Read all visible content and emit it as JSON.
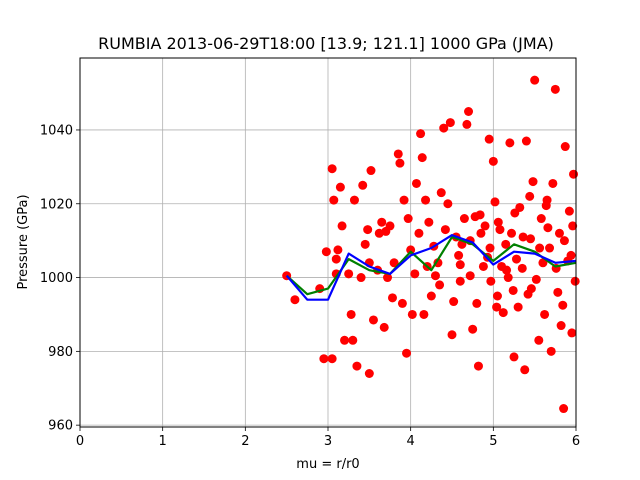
{
  "chart_data": {
    "type": "scatter",
    "title": "RUMBIA 2013-06-29T18:00 [13.9; 121.1] 1000 GPa (JMA)",
    "xlabel": "mu = r/r0",
    "ylabel": "Pressure (GPa)",
    "xlim": [
      0,
      6
    ],
    "ylim": [
      959.5,
      1059.5
    ],
    "xticks": [
      "0",
      "1",
      "2",
      "3",
      "4",
      "5",
      "6"
    ],
    "yticks": [
      "960",
      "980",
      "1000",
      "1020",
      "1040"
    ],
    "grid": true,
    "colors": {
      "scatter": "#ff0000",
      "green_line": "#008000",
      "blue_line": "#0000ff"
    },
    "lines": [
      {
        "color": "#008000",
        "x": [
          2.5,
          2.75,
          3.0,
          3.25,
          3.5,
          3.75,
          4.0,
          4.25,
          4.5,
          4.75,
          5.0,
          5.25,
          5.5,
          5.75,
          6.0
        ],
        "y": [
          1000.5,
          995.5,
          997.0,
          1005.0,
          1002.0,
          1001.0,
          1007.0,
          1002.0,
          1011.0,
          1009.0,
          1004.5,
          1009.0,
          1007.0,
          1003.0,
          1004.0
        ]
      },
      {
        "color": "#0000ff",
        "x": [
          2.5,
          2.75,
          3.0,
          3.25,
          3.5,
          3.75,
          4.0,
          4.25,
          4.5,
          4.75,
          5.0,
          5.25,
          5.5,
          5.75,
          6.0
        ],
        "y": [
          1000.5,
          994.0,
          994.0,
          1006.5,
          1003.0,
          1001.0,
          1006.0,
          1008.0,
          1011.5,
          1009.5,
          1003.5,
          1007.0,
          1006.5,
          1004.0,
          1004.5
        ]
      }
    ],
    "points": [
      [
        2.5,
        1000.5
      ],
      [
        2.6,
        994.0
      ],
      [
        2.9,
        997.0
      ],
      [
        2.95,
        978.0
      ],
      [
        2.98,
        1007.0
      ],
      [
        3.05,
        978.0
      ],
      [
        3.05,
        1029.5
      ],
      [
        3.07,
        1021.0
      ],
      [
        3.1,
        1001.0
      ],
      [
        3.1,
        1005.0
      ],
      [
        3.12,
        1007.5
      ],
      [
        3.15,
        1024.5
      ],
      [
        3.17,
        1014.0
      ],
      [
        3.2,
        983.0
      ],
      [
        3.25,
        1001.0
      ],
      [
        3.28,
        990.0
      ],
      [
        3.3,
        983.0
      ],
      [
        3.32,
        1021.0
      ],
      [
        3.35,
        976.0
      ],
      [
        3.4,
        1000.0
      ],
      [
        3.42,
        1025.0
      ],
      [
        3.45,
        1009.0
      ],
      [
        3.48,
        1013.0
      ],
      [
        3.5,
        974.0
      ],
      [
        3.5,
        1004.0
      ],
      [
        3.52,
        1029.0
      ],
      [
        3.55,
        988.5
      ],
      [
        3.6,
        1002.0
      ],
      [
        3.62,
        1012.0
      ],
      [
        3.65,
        1015.0
      ],
      [
        3.68,
        986.5
      ],
      [
        3.7,
        1012.5
      ],
      [
        3.72,
        1000.0
      ],
      [
        3.75,
        1014.0
      ],
      [
        3.78,
        994.5
      ],
      [
        3.8,
        1004.0
      ],
      [
        3.85,
        1033.5
      ],
      [
        3.87,
        1031.0
      ],
      [
        3.9,
        993.0
      ],
      [
        3.92,
        1021.0
      ],
      [
        3.95,
        979.5
      ],
      [
        3.97,
        1016.0
      ],
      [
        4.0,
        1007.5
      ],
      [
        4.02,
        990.0
      ],
      [
        4.05,
        1001.0
      ],
      [
        4.07,
        1025.5
      ],
      [
        4.1,
        1012.0
      ],
      [
        4.12,
        1039.0
      ],
      [
        4.14,
        1032.5
      ],
      [
        4.16,
        990.0
      ],
      [
        4.18,
        1021.0
      ],
      [
        4.2,
        1003.0
      ],
      [
        4.22,
        1015.0
      ],
      [
        4.25,
        995.0
      ],
      [
        4.28,
        1008.5
      ],
      [
        4.3,
        1000.5
      ],
      [
        4.33,
        1004.0
      ],
      [
        4.35,
        998.0
      ],
      [
        4.37,
        1023.0
      ],
      [
        4.4,
        1040.5
      ],
      [
        4.42,
        1013.0
      ],
      [
        4.45,
        1020.0
      ],
      [
        4.48,
        1042.0
      ],
      [
        4.5,
        984.5
      ],
      [
        4.52,
        993.5
      ],
      [
        4.55,
        1011.0
      ],
      [
        4.58,
        1006.0
      ],
      [
        4.6,
        999.0
      ],
      [
        4.62,
        1009.0
      ],
      [
        4.65,
        1016.0
      ],
      [
        4.68,
        1041.5
      ],
      [
        4.7,
        1045.0
      ],
      [
        4.72,
        1000.5
      ],
      [
        4.75,
        986.0
      ],
      [
        4.78,
        1016.5
      ],
      [
        4.8,
        993.0
      ],
      [
        4.82,
        976.0
      ],
      [
        4.85,
        1012.0
      ],
      [
        4.88,
        1003.0
      ],
      [
        4.9,
        1014.0
      ],
      [
        4.93,
        1005.5
      ],
      [
        4.95,
        1037.5
      ],
      [
        4.97,
        999.0
      ],
      [
        5.0,
        1031.5
      ],
      [
        5.02,
        1020.5
      ],
      [
        5.05,
        995.0
      ],
      [
        5.08,
        1013.0
      ],
      [
        5.1,
        1003.0
      ],
      [
        5.12,
        990.5
      ],
      [
        5.15,
        1009.0
      ],
      [
        5.18,
        1000.0
      ],
      [
        5.2,
        1036.5
      ],
      [
        5.22,
        1012.0
      ],
      [
        5.25,
        978.5
      ],
      [
        5.28,
        1005.0
      ],
      [
        5.3,
        992.0
      ],
      [
        5.32,
        1019.0
      ],
      [
        5.35,
        1002.5
      ],
      [
        5.38,
        975.0
      ],
      [
        5.4,
        1037.0
      ],
      [
        5.42,
        995.5
      ],
      [
        5.45,
        1010.5
      ],
      [
        5.48,
        1026.0
      ],
      [
        5.5,
        1053.5
      ],
      [
        5.52,
        999.5
      ],
      [
        5.55,
        983.0
      ],
      [
        5.58,
        1016.0
      ],
      [
        5.6,
        1004.0
      ],
      [
        5.62,
        990.0
      ],
      [
        5.65,
        1021.0
      ],
      [
        5.68,
        1008.0
      ],
      [
        5.7,
        980.0
      ],
      [
        5.72,
        1025.5
      ],
      [
        5.75,
        1051.0
      ],
      [
        5.78,
        996.0
      ],
      [
        5.8,
        1012.0
      ],
      [
        5.82,
        987.0
      ],
      [
        5.85,
        964.5
      ],
      [
        5.87,
        1035.5
      ],
      [
        5.9,
        1004.5
      ],
      [
        5.92,
        1018.0
      ],
      [
        5.95,
        985.0
      ],
      [
        5.97,
        1028.0
      ],
      [
        5.99,
        999.0
      ],
      [
        4.6,
        1003.5
      ],
      [
        4.72,
        1010.0
      ],
      [
        4.84,
        1017.0
      ],
      [
        4.96,
        1008.0
      ],
      [
        5.06,
        1015.0
      ],
      [
        5.16,
        1002.0
      ],
      [
        5.26,
        1017.5
      ],
      [
        5.36,
        1011.0
      ],
      [
        5.46,
        997.0
      ],
      [
        5.56,
        1008.0
      ],
      [
        5.66,
        1013.5
      ],
      [
        5.76,
        1002.5
      ],
      [
        5.86,
        1010.0
      ],
      [
        5.96,
        1014.0
      ],
      [
        5.04,
        992.0
      ],
      [
        5.24,
        996.5
      ],
      [
        5.44,
        1022.0
      ],
      [
        5.64,
        1019.5
      ],
      [
        5.84,
        992.5
      ],
      [
        5.94,
        1006.0
      ]
    ]
  }
}
